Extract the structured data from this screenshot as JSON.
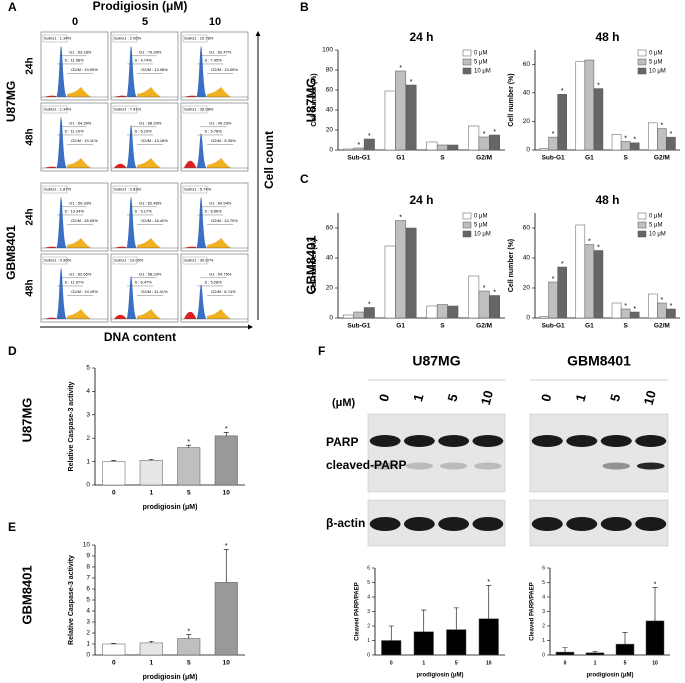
{
  "panel_labels": [
    "A",
    "B",
    "C",
    "D",
    "E",
    "F"
  ],
  "cell_lines": [
    "U87MG",
    "GBM8401"
  ],
  "flow": {
    "title": "Prodigiosin (μM)",
    "doses": [
      "0",
      "5",
      "10"
    ],
    "times": [
      "24h",
      "48h"
    ],
    "y_label": "Cell count",
    "x_label": "DNA content",
    "gates": [
      [
        [
          "SubG1 : 1.34%",
          "G1 : 63.18%",
          "S : 11.58%",
          "G2/M : 19.90%"
        ],
        [
          "SubG1 : 2.06%",
          "G1 : 79.28%",
          "S : 4.74%",
          "G2/M : 13.08%"
        ],
        [
          "SubG1 : 10.78%",
          "G1 : 62.47%",
          "S : 7.45%",
          "G2/M : 13.09%"
        ]
      ],
      [
        [
          "SubG1 : 1.34%",
          "G1 : 64.39%",
          "S : 11.10%",
          "G2/M : 19.11%"
        ],
        [
          "SubG1 : 7.41%",
          "G1 : 68.29%",
          "S : 6.10%",
          "G2/M : 13.18%"
        ],
        [
          "SubG1 : 35.08%",
          "G1 : 49.23%",
          "S : 5.78%",
          "G2/M : 9.30%"
        ]
      ],
      [
        [
          "SubG1 : 1.87%",
          "G1 : 50.33%",
          "S : 13.34%",
          "G2/M : 26.09%"
        ],
        [
          "SubG1 : 2.83%",
          "G1 : 62.48%",
          "S : 9.17%",
          "G2/M : 16.42%"
        ],
        [
          "SubG1 : 5.74%",
          "G1 : 60.54%",
          "S : 8.66%",
          "G2/M : 14.70%"
        ]
      ],
      [
        [
          "SubG1 : 0.96%",
          "G1 : 62.65%",
          "S : 11.97%",
          "G2/M : 19.19%"
        ],
        [
          "SubG1 : 19.09%",
          "G1 : 58.23%",
          "S : 6.47%",
          "G2/M : 11.41%"
        ],
        [
          "SubG1 : 30.87%",
          "G1 : 54.75%",
          "S : 5.28%",
          "G2/M : 6.74%"
        ]
      ]
    ]
  },
  "blot": {
    "unit": "(μM)",
    "doses": [
      "0",
      "1",
      "5",
      "10"
    ],
    "bands": [
      "PARP",
      "cleaved-PARP",
      "β-actin"
    ]
  },
  "chart_data": [
    {
      "type": "bar",
      "title": "24 h",
      "ylabel": "Cell number (%)",
      "categories": [
        "Sub-G1",
        "G1",
        "S",
        "G2/M"
      ],
      "ylim": [
        0,
        100
      ],
      "yticks": [
        0,
        20,
        40,
        60,
        80,
        100
      ],
      "legend": "top-right",
      "series": [
        {
          "name": "0 μM",
          "color": "#ffffff",
          "values": [
            1,
            59,
            8,
            24
          ],
          "significance": [
            null,
            null,
            null,
            null
          ]
        },
        {
          "name": "5 μM",
          "color": "#bfbfbf",
          "values": [
            2,
            79,
            5,
            13
          ],
          "significance": [
            "*",
            "*",
            null,
            "*"
          ]
        },
        {
          "name": "10 μM",
          "color": "#666666",
          "values": [
            11,
            65,
            5,
            15
          ],
          "significance": [
            "*",
            "*",
            null,
            "*"
          ]
        }
      ]
    },
    {
      "type": "bar",
      "title": "48 h",
      "ylabel": "Cell number (%)",
      "categories": [
        "Sub-G1",
        "G1",
        "S",
        "G2/M"
      ],
      "ylim": [
        0,
        70
      ],
      "yticks": [
        0,
        20,
        40,
        60
      ],
      "legend": "top-right",
      "series": [
        {
          "name": "0 μM",
          "color": "#ffffff",
          "values": [
            1,
            62,
            11,
            19
          ],
          "significance": [
            null,
            null,
            null,
            null
          ]
        },
        {
          "name": "5 μM",
          "color": "#bfbfbf",
          "values": [
            9,
            63,
            6,
            15
          ],
          "significance": [
            "*",
            null,
            "*",
            "*"
          ]
        },
        {
          "name": "10 μM",
          "color": "#666666",
          "values": [
            39,
            43,
            5,
            9
          ],
          "significance": [
            "*",
            "*",
            "*",
            "*"
          ]
        }
      ]
    },
    {
      "type": "bar",
      "title": "24 h",
      "ylabel": "Cell number (%)",
      "categories": [
        "Sub-G1",
        "G1",
        "S",
        "G2/M"
      ],
      "ylim": [
        0,
        70
      ],
      "yticks": [
        0,
        20,
        40,
        60
      ],
      "legend": "top-right",
      "series": [
        {
          "name": "0 μM",
          "color": "#ffffff",
          "values": [
            2,
            48,
            8,
            28
          ],
          "significance": [
            null,
            null,
            null,
            null
          ]
        },
        {
          "name": "5 μM",
          "color": "#bfbfbf",
          "values": [
            4,
            65,
            9,
            18
          ],
          "significance": [
            null,
            "*",
            null,
            "*"
          ]
        },
        {
          "name": "10 μM",
          "color": "#666666",
          "values": [
            7,
            60,
            8,
            15
          ],
          "significance": [
            "*",
            null,
            null,
            "*"
          ]
        }
      ]
    },
    {
      "type": "bar",
      "title": "48 h",
      "ylabel": "Cell number (%)",
      "categories": [
        "Sub-G1",
        "G1",
        "S",
        "G2/M"
      ],
      "ylim": [
        0,
        70
      ],
      "yticks": [
        0,
        20,
        40,
        60
      ],
      "legend": "top-right",
      "series": [
        {
          "name": "0 μM",
          "color": "#ffffff",
          "values": [
            1,
            62,
            10,
            16
          ],
          "significance": [
            null,
            null,
            null,
            null
          ]
        },
        {
          "name": "5 μM",
          "color": "#bfbfbf",
          "values": [
            24,
            49,
            6,
            10
          ],
          "significance": [
            "*",
            "*",
            "*",
            "*"
          ]
        },
        {
          "name": "10 μM",
          "color": "#666666",
          "values": [
            34,
            45,
            4,
            6
          ],
          "significance": [
            "*",
            "*",
            "*",
            "*"
          ]
        }
      ]
    },
    {
      "type": "bar",
      "ylabel": "Relative Caspase-3 activity",
      "xlabel": "prodigiosin (μM)",
      "categories": [
        "0",
        "1",
        "5",
        "10"
      ],
      "values": [
        1.0,
        1.05,
        1.6,
        2.1
      ],
      "errors": [
        0.05,
        0.05,
        0.1,
        0.15
      ],
      "significance": [
        null,
        null,
        "*",
        "*"
      ],
      "colors": [
        "#ffffff",
        "#e6e6e6",
        "#bfbfbf",
        "#999999"
      ],
      "ylim": [
        0,
        5
      ],
      "yticks": [
        0,
        1,
        2,
        3,
        4,
        5
      ]
    },
    {
      "type": "bar",
      "ylabel": "Relative Caspase-3 activity",
      "xlabel": "prodigiosin (μM)",
      "categories": [
        "0",
        "1",
        "5",
        "10"
      ],
      "values": [
        1.0,
        1.1,
        1.5,
        6.6
      ],
      "errors": [
        0.05,
        0.15,
        0.35,
        3.0
      ],
      "significance": [
        null,
        null,
        "*",
        "*"
      ],
      "colors": [
        "#ffffff",
        "#e6e6e6",
        "#bfbfbf",
        "#999999"
      ],
      "ylim": [
        0,
        10
      ],
      "yticks": [
        0,
        1,
        2,
        3,
        4,
        5,
        6,
        7,
        8,
        9,
        10
      ]
    },
    {
      "type": "bar",
      "ylabel": "Cleaved PARP/PAEP",
      "xlabel": "prodigiosin (μM)",
      "categories": [
        "0",
        "1",
        "5",
        "10"
      ],
      "values": [
        1.0,
        1.6,
        1.75,
        2.5
      ],
      "errors": [
        1.0,
        1.5,
        1.5,
        2.3
      ],
      "significance": [
        null,
        null,
        null,
        "*"
      ],
      "colors": [
        "#000000",
        "#000000",
        "#000000",
        "#000000"
      ],
      "ylim": [
        0,
        6
      ],
      "yticks": [
        0,
        1,
        2,
        3,
        4,
        5,
        6
      ]
    },
    {
      "type": "bar",
      "ylabel": "Cleaved PARP/PAEP",
      "xlabel": "prodigiosin (μM)",
      "categories": [
        "0",
        "1",
        "5",
        "10"
      ],
      "values": [
        0.2,
        0.15,
        0.75,
        2.35
      ],
      "errors": [
        0.3,
        0.1,
        0.8,
        2.3
      ],
      "significance": [
        null,
        null,
        null,
        "*"
      ],
      "colors": [
        "#000000",
        "#000000",
        "#000000",
        "#000000"
      ],
      "ylim": [
        0,
        6
      ],
      "yticks": [
        0,
        1,
        2,
        3,
        4,
        5,
        6
      ]
    }
  ]
}
